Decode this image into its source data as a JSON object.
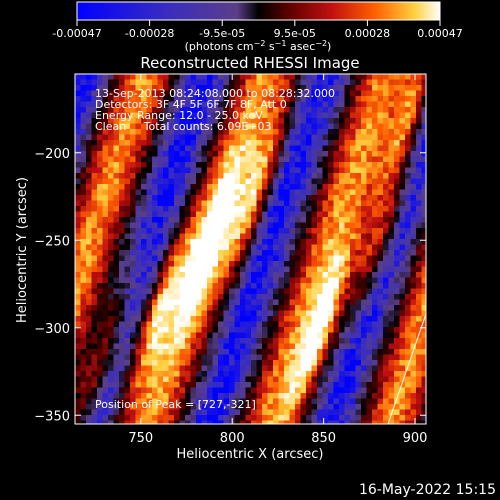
{
  "colorbar": {
    "tick_labels": [
      "-0.00047",
      "-0.00028",
      "-9.5e-05",
      "9.5e-05",
      "0.00028",
      "0.00047"
    ],
    "unit_label": "(photons cm^-2 s^-1 asec^-2)",
    "colors": [
      "#0000ff",
      "#3a2dbf",
      "#5a3f88",
      "#000000",
      "#5a0000",
      "#c01010",
      "#ff6000",
      "#ffd040",
      "#ffffff"
    ]
  },
  "image": {
    "title": "Reconstructed RHESSI Image",
    "info_lines": [
      "13-Sep-2013 08:24:08.000 to 08:28:32.000",
      "Detectors: 3F 4F 5F 6F 7F 8F, Att 0",
      "Energy Range: 12.0 - 25.0 keV",
      "Clean     Total counts: 6.09E+03"
    ],
    "peak_label": "Position of Peak = [727,-321]"
  },
  "footer_date": "16-May-2022 15:15",
  "chart_data": {
    "type": "heatmap",
    "title": "Reconstructed RHESSI Image",
    "xlabel": "Heliocentric X (arcsec)",
    "ylabel": "Heliocentric Y (arcsec)",
    "xlim": [
      714,
      906
    ],
    "ylim": [
      -355,
      -155
    ],
    "xticks": [
      750,
      800,
      850,
      900
    ],
    "yticks": [
      -350,
      -300,
      -250,
      -200
    ],
    "colorbar_range": [
      -0.00047,
      0.00047
    ],
    "peak_position": [
      727,
      -321
    ],
    "stripe_ridges": [
      {
        "x": 727,
        "y": -321
      },
      {
        "x": 760,
        "y": -290
      },
      {
        "x": 786,
        "y": -255
      },
      {
        "x": 812,
        "y": -225
      },
      {
        "x": 848,
        "y": -300
      },
      {
        "x": 880,
        "y": -250
      },
      {
        "x": 896,
        "y": -180
      }
    ]
  }
}
